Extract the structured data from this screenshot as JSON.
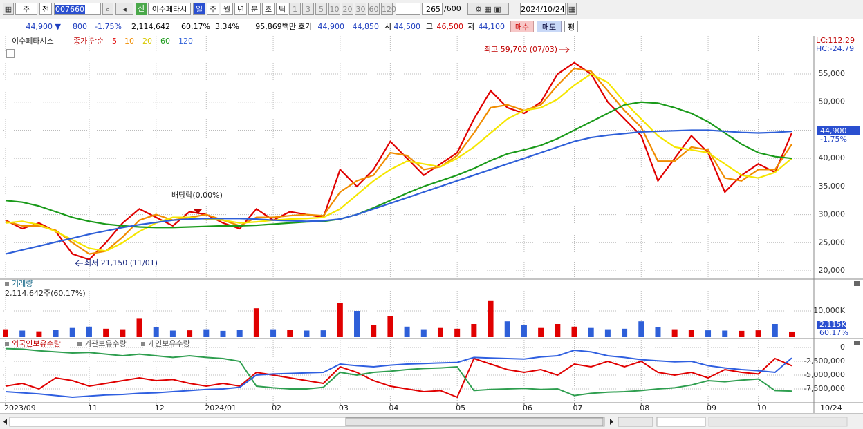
{
  "toolbar": {
    "market": "주",
    "prev": "전",
    "code": "007660",
    "credit": "신",
    "name": "이수페타시",
    "periods": [
      "일",
      "주",
      "월",
      "년",
      "분",
      "초",
      "틱"
    ],
    "intervals": [
      "1",
      "3",
      "5",
      "10",
      "20",
      "30",
      "60",
      "120"
    ],
    "count": "265",
    "max_count": "/600",
    "date": "2024/10/24"
  },
  "quote": {
    "price": "44,900",
    "arrow": "▼",
    "change": "800",
    "change_pct": "-1.75%",
    "volume": "2,114,642",
    "volume_pct": "60.17%",
    "turnover": "3.34%",
    "amount": "95,869백만",
    "bid_label": "호가",
    "ask": "44,900",
    "bid": "44,850",
    "open_label": "시",
    "open": "44,500",
    "high_label": "고",
    "high": "46,500",
    "low_label": "저",
    "low": "44,100",
    "buy": "매수",
    "sell": "매도",
    "avg": "평"
  },
  "chart_data": [
    {
      "type": "line",
      "title": "이수페타시스",
      "legend_title": "종가 단순",
      "grid": true,
      "ylim": [
        18770,
        61760
      ],
      "yticks": [
        {
          "value": 20000,
          "label": "20,000"
        },
        {
          "value": 25000,
          "label": "25,000"
        },
        {
          "value": 30000,
          "label": "30,000"
        },
        {
          "value": 35000,
          "label": "35,000"
        },
        {
          "value": 40000,
          "label": "40,000"
        },
        {
          "value": 45000,
          "label": "45,000"
        },
        {
          "value": 50000,
          "label": "50,000"
        },
        {
          "value": 55000,
          "label": "55,000"
        }
      ],
      "series": [
        {
          "name": "5",
          "color": "#e00000",
          "values": [
            29000,
            27500,
            28500,
            27000,
            23000,
            22000,
            25000,
            28500,
            31000,
            29500,
            28000,
            30500,
            30000,
            28500,
            27500,
            31000,
            29000,
            30500,
            30000,
            29500,
            38000,
            35000,
            38000,
            43000,
            40000,
            37000,
            39000,
            41000,
            47000,
            52000,
            49000,
            48000,
            50000,
            55000,
            57000,
            55000,
            50000,
            47000,
            44000,
            36000,
            40000,
            44000,
            41000,
            34000,
            37000,
            39000,
            37500,
            44500
          ]
        },
        {
          "name": "10",
          "color": "#f08c00",
          "values": [
            28800,
            28000,
            28000,
            27200,
            25000,
            23000,
            23500,
            26000,
            29000,
            30000,
            29000,
            29500,
            30000,
            29000,
            28000,
            29500,
            29500,
            29800,
            30000,
            29800,
            34000,
            36000,
            37000,
            41000,
            40500,
            38000,
            38500,
            40500,
            44500,
            49000,
            49500,
            48500,
            49500,
            53000,
            56000,
            55500,
            52000,
            48500,
            45500,
            39500,
            39500,
            42000,
            41500,
            36500,
            36000,
            38000,
            38000,
            42500
          ]
        },
        {
          "name": "20",
          "color": "#f5e600",
          "values": [
            28500,
            28800,
            28200,
            27000,
            25500,
            24000,
            23500,
            25000,
            27000,
            28500,
            29500,
            29500,
            29200,
            29000,
            28500,
            28700,
            29000,
            29200,
            29300,
            29500,
            31000,
            33500,
            36000,
            38000,
            39500,
            39000,
            38500,
            40000,
            42000,
            44500,
            47000,
            48500,
            49000,
            50500,
            53000,
            55000,
            53500,
            50000,
            47000,
            44000,
            42000,
            41500,
            41000,
            39000,
            37000,
            36500,
            37500,
            40000
          ]
        },
        {
          "name": "60",
          "color": "#1a9a1a",
          "values": [
            32500,
            32200,
            31500,
            30500,
            29500,
            28800,
            28300,
            28000,
            27800,
            27700,
            27700,
            27800,
            27900,
            28000,
            28000,
            28100,
            28300,
            28500,
            28700,
            28800,
            29200,
            30000,
            31200,
            32500,
            33800,
            35000,
            36000,
            37000,
            38200,
            39600,
            40800,
            41500,
            42300,
            43500,
            45000,
            46500,
            48000,
            49500,
            50000,
            49800,
            49000,
            48000,
            46500,
            44500,
            42500,
            41000,
            40300,
            40000
          ]
        },
        {
          "name": "120",
          "color": "#2e5fd8",
          "values": [
            23000,
            23700,
            24400,
            25100,
            25800,
            26500,
            27100,
            27700,
            28200,
            28600,
            29000,
            29200,
            29300,
            29300,
            29300,
            29200,
            29000,
            28900,
            28800,
            28900,
            29200,
            30000,
            31000,
            32000,
            33000,
            34000,
            35000,
            36000,
            37000,
            38000,
            39000,
            40000,
            41000,
            42000,
            43000,
            43700,
            44100,
            44400,
            44700,
            44800,
            44900,
            45000,
            45000,
            44800,
            44600,
            44500,
            44600,
            44800
          ]
        }
      ],
      "annotations": [
        "최고 59,700 (07/03)",
        "최저 21,150 (11/01)",
        "배당락(0.00%)"
      ],
      "lc_label": "LC:112.29",
      "hc_label": "HC:-24.79",
      "last_label": "44,900",
      "last_change": "-1.75%"
    },
    {
      "type": "bar",
      "title": "거래량",
      "subtitle": "2,114,642주(60.17%)",
      "up_color": "#e00000",
      "down_color": "#2e5fd8",
      "grid": true,
      "ylim": [
        0,
        18421
      ],
      "yticks": [
        {
          "value": 10000,
          "label": "10,000K"
        }
      ],
      "values": [
        3000,
        2500,
        2200,
        2800,
        3500,
        4000,
        3200,
        3000,
        7000,
        3800,
        2500,
        2600,
        3000,
        2400,
        2800,
        11000,
        3000,
        2800,
        2500,
        2600,
        13000,
        10000,
        4500,
        8000,
        4000,
        3000,
        3500,
        3200,
        5000,
        14000,
        6000,
        4500,
        3500,
        5000,
        4000,
        3500,
        3000,
        3200,
        6000,
        3800,
        3000,
        2800,
        2600,
        2500,
        2400,
        2600,
        5000,
        2115
      ],
      "last_label": "2,115K",
      "last_pct": "60.17%"
    },
    {
      "type": "line",
      "grid": true,
      "ylim": [
        -9625000,
        1375000
      ],
      "yticks": [
        0,
        {
          "value": -2500000,
          "label": "-2,500,000"
        },
        {
          "value": -5000000,
          "label": "-5,000,000"
        },
        {
          "value": -7500000,
          "label": "-7,500,000"
        }
      ],
      "categories": [
        "2023/09",
        null,
        null,
        null,
        null,
        "11",
        null,
        null,
        null,
        "12",
        null,
        null,
        "2024/01",
        null,
        null,
        null,
        "02",
        null,
        null,
        null,
        "03",
        null,
        null,
        "04",
        null,
        null,
        null,
        "05",
        null,
        null,
        null,
        "06",
        null,
        null,
        "07",
        null,
        null,
        null,
        "08",
        null,
        null,
        null,
        "09",
        null,
        null,
        "10",
        null,
        null
      ],
      "current_date_label": "10/24",
      "series": [
        {
          "name": "외국인보유수량",
          "color": "#e00000",
          "values": [
            -7000000,
            -6500000,
            -7500000,
            -5500000,
            -6000000,
            -7000000,
            -6500000,
            -6000000,
            -5500000,
            -6000000,
            -5800000,
            -6500000,
            -7000000,
            -6500000,
            -7000000,
            -4500000,
            -5000000,
            -5500000,
            -6000000,
            -6500000,
            -3500000,
            -4500000,
            -6000000,
            -7000000,
            -7500000,
            -8000000,
            -7800000,
            -9000000,
            -2000000,
            -3000000,
            -4000000,
            -4500000,
            -4000000,
            -5000000,
            -3000000,
            -3500000,
            -2500000,
            -3500000,
            -2500000,
            -4500000,
            -5000000,
            -4500000,
            -5500000,
            -4000000,
            -4500000,
            -4800000,
            -2000000,
            -3300000
          ]
        },
        {
          "name": "기관보유수량",
          "color": "#2e9e4f",
          "values": [
            -200000,
            -300000,
            -600000,
            -800000,
            -1000000,
            -900000,
            -1200000,
            -1500000,
            -1200000,
            -1500000,
            -1800000,
            -1500000,
            -1800000,
            -2000000,
            -2500000,
            -7000000,
            -7300000,
            -7500000,
            -7500000,
            -7200000,
            -4500000,
            -5000000,
            -4500000,
            -4300000,
            -4000000,
            -3800000,
            -3700000,
            -3500000,
            -7800000,
            -7600000,
            -7500000,
            -7400000,
            -7600000,
            -7500000,
            -8700000,
            -8300000,
            -8100000,
            -8000000,
            -7800000,
            -7500000,
            -7300000,
            -6800000,
            -6000000,
            -6200000,
            -5900000,
            -5700000,
            -7800000,
            -7900000
          ]
        },
        {
          "name": "개인보유수량",
          "color": "#2f5fe0",
          "values": [
            -8000000,
            -8200000,
            -8400000,
            -8700000,
            -9000000,
            -8800000,
            -8600000,
            -8500000,
            -8300000,
            -8200000,
            -8000000,
            -7800000,
            -7600000,
            -7500000,
            -7200000,
            -5000000,
            -4800000,
            -4700000,
            -4600000,
            -4500000,
            -3000000,
            -3300000,
            -3500000,
            -3200000,
            -3000000,
            -2900000,
            -2800000,
            -2700000,
            -1800000,
            -1900000,
            -2000000,
            -2100000,
            -1700000,
            -1500000,
            -500000,
            -800000,
            -1500000,
            -1800000,
            -2200000,
            -2400000,
            -2600000,
            -2500000,
            -3300000,
            -3700000,
            -4000000,
            -4200000,
            -4500000,
            -1900000
          ]
        }
      ]
    }
  ]
}
